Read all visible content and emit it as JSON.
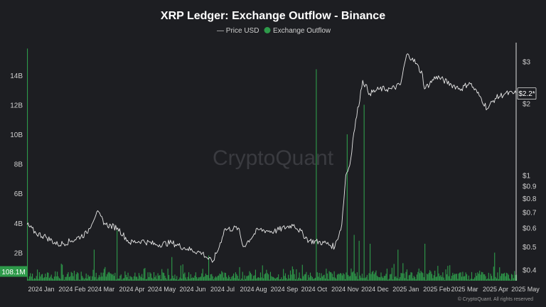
{
  "chart_data": {
    "type": "bar+line",
    "title": "XRP Ledger: Exchange Outflow - Binance",
    "legend": [
      {
        "label": "Price USD",
        "marker": "—",
        "color": "#bbbbbb"
      },
      {
        "label": "Exchange Outflow",
        "marker": "●",
        "color": "#2e9a4a"
      }
    ],
    "legend_position": "top-center",
    "watermark": "CryptoQuant",
    "copyright": "© CryptoQuant. All rights reserved",
    "left_axis": {
      "ticks": [
        "2B",
        "4B",
        "6B",
        "8B",
        "10B",
        "12B",
        "14B"
      ],
      "values": [
        2,
        4,
        6,
        8,
        10,
        12,
        14
      ],
      "ylim": [
        0.1,
        16.2
      ],
      "unit": "B"
    },
    "right_axis": {
      "ticks": [
        "$0.4",
        "$0.5",
        "$0.6",
        "$0.7",
        "$0.8",
        "$0.9",
        "$1",
        "$2",
        "$3"
      ],
      "values": [
        0.4,
        0.5,
        0.6,
        0.7,
        0.8,
        0.9,
        1,
        2,
        3
      ],
      "scale": "log",
      "ylim": [
        0.36,
        3.6
      ]
    },
    "x_ticks": [
      "2024 Jan",
      "2024 Feb",
      "2024 Mar",
      "2024 Apr",
      "2024 May",
      "2024 Jun",
      "2024 Jul",
      "2024 Aug",
      "2024 Sep",
      "2024 Oct",
      "2024 Nov",
      "2024 Dec",
      "2025 Jan",
      "2025 Feb",
      "2025 Mar",
      "2025 Apr",
      "2025 May"
    ],
    "x_range": [
      "2024-01-01",
      "2025-05-06"
    ],
    "last_outflow_label": "108.1M",
    "last_price_label": "$2.2*",
    "price_series": {
      "name": "Price USD",
      "color": "#e8e8e8",
      "dates": [
        "2024-01-01",
        "2024-01-10",
        "2024-01-20",
        "2024-02-01",
        "2024-02-15",
        "2024-03-01",
        "2024-03-11",
        "2024-03-20",
        "2024-04-01",
        "2024-04-13",
        "2024-04-25",
        "2024-05-10",
        "2024-05-25",
        "2024-06-10",
        "2024-06-25",
        "2024-07-05",
        "2024-07-12",
        "2024-07-17",
        "2024-07-31",
        "2024-08-05",
        "2024-08-20",
        "2024-09-05",
        "2024-09-25",
        "2024-10-10",
        "2024-10-25",
        "2024-11-05",
        "2024-11-12",
        "2024-11-16",
        "2024-11-20",
        "2024-11-24",
        "2024-12-03",
        "2024-12-10",
        "2024-12-20",
        "2025-01-01",
        "2025-01-10",
        "2025-01-16",
        "2025-01-22",
        "2025-02-01",
        "2025-02-03",
        "2025-02-15",
        "2025-03-02",
        "2025-03-12",
        "2025-03-20",
        "2025-04-01",
        "2025-04-07",
        "2025-04-15",
        "2025-04-25",
        "2025-05-06"
      ],
      "values": [
        0.62,
        0.57,
        0.55,
        0.51,
        0.53,
        0.57,
        0.7,
        0.62,
        0.6,
        0.52,
        0.53,
        0.51,
        0.52,
        0.49,
        0.47,
        0.43,
        0.5,
        0.59,
        0.6,
        0.5,
        0.59,
        0.58,
        0.62,
        0.53,
        0.52,
        0.5,
        0.62,
        1.0,
        1.1,
        1.5,
        2.5,
        2.2,
        2.3,
        2.3,
        2.4,
        3.2,
        3.1,
        2.65,
        2.3,
        2.6,
        2.4,
        2.3,
        2.45,
        2.1,
        1.9,
        2.1,
        2.2,
        2.2
      ]
    },
    "outflow_series": {
      "name": "Exchange Outflow",
      "color": "#2e9a4a",
      "unit": "B",
      "start_date": "2024-01-01",
      "interval": "day",
      "peaks": [
        {
          "date": "2024-01-01",
          "value": 15.8
        },
        {
          "date": "2024-03-31",
          "value": 3.5
        },
        {
          "date": "2024-03-08",
          "value": 2.2
        },
        {
          "date": "2024-05-25",
          "value": 1.7
        },
        {
          "date": "2024-07-01",
          "value": 1.8
        },
        {
          "date": "2024-10-17",
          "value": 14.4
        },
        {
          "date": "2024-11-17",
          "value": 10.0
        },
        {
          "date": "2024-11-24",
          "value": 3.2
        },
        {
          "date": "2024-11-29",
          "value": 2.8
        },
        {
          "date": "2024-12-04",
          "value": 12.0
        },
        {
          "date": "2024-12-10",
          "value": 2.6
        },
        {
          "date": "2025-01-07",
          "value": 2.2
        },
        {
          "date": "2025-02-03",
          "value": 2.6
        },
        {
          "date": "2025-04-14",
          "value": 2.0
        }
      ]
    }
  }
}
